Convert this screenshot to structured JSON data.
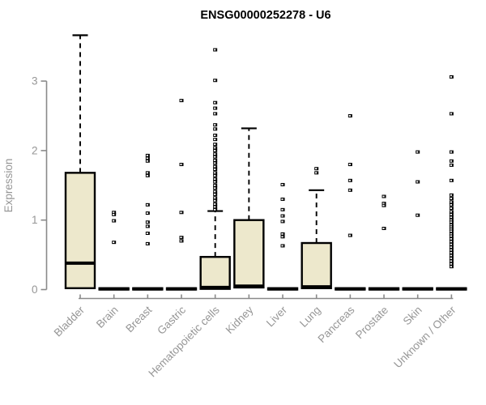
{
  "chart_data": {
    "type": "box",
    "title": "ENSG00000252278 - U6",
    "ylabel": "Expression",
    "xlabel": "",
    "ylim": [
      0,
      3.7
    ],
    "yticks": [
      0,
      1,
      2,
      3
    ],
    "grid": false,
    "legend": "none",
    "colors": {
      "box_fill": "#EDE8CC",
      "box_border": "#000000",
      "median": "#000000",
      "whisker": "#000000",
      "outlier": "#000000",
      "axis": "#8A8A8A",
      "tick_text": "#969696",
      "title_text": "#000000",
      "background": "#FFFFFF"
    },
    "categories": [
      "Bladder",
      "Brain",
      "Breast",
      "Gastric",
      "Hematopoietic cells",
      "Kidney",
      "Liver",
      "Lung",
      "Pancreas",
      "Prostate",
      "Skin",
      "Unknown / Other"
    ],
    "boxes": [
      {
        "category": "Bladder",
        "q1": 0.02,
        "median": 0.38,
        "q3": 1.68,
        "whisker_low": 0.02,
        "whisker_high": 3.66,
        "outliers": []
      },
      {
        "category": "Brain",
        "q1": 0,
        "median": 0.01,
        "q3": 0.02,
        "whisker_low": 0,
        "whisker_high": 0.02,
        "outliers": [
          1.11,
          1.08,
          0.99,
          0.68
        ]
      },
      {
        "category": "Breast",
        "q1": 0,
        "median": 0.01,
        "q3": 0.02,
        "whisker_low": 0,
        "whisker_high": 0.02,
        "outliers": [
          1.93,
          1.89,
          1.85,
          1.68,
          1.64,
          1.22,
          1.1,
          0.97,
          0.91,
          0.81,
          0.66
        ]
      },
      {
        "category": "Gastric",
        "q1": 0,
        "median": 0.01,
        "q3": 0.02,
        "whisker_low": 0,
        "whisker_high": 0.02,
        "outliers": [
          2.72,
          1.8,
          1.11,
          0.75,
          0.7
        ]
      },
      {
        "category": "Hematopoietic cells",
        "q1": 0.01,
        "median": 0.03,
        "q3": 0.47,
        "whisker_low": 0.01,
        "whisker_high": 1.13,
        "outliers": [
          3.45,
          3.01,
          2.69,
          2.61,
          2.53,
          2.37,
          2.31,
          2.22,
          2.16,
          2.09,
          2.04,
          2.0,
          1.95,
          1.91,
          1.86,
          1.82,
          1.77,
          1.73,
          1.68,
          1.64,
          1.59,
          1.55,
          1.5,
          1.46,
          1.41,
          1.37,
          1.32,
          1.28,
          1.23,
          1.19,
          1.15
        ]
      },
      {
        "category": "Kidney",
        "q1": 0.03,
        "median": 0.05,
        "q3": 1.0,
        "whisker_low": 0.03,
        "whisker_high": 2.32,
        "outliers": []
      },
      {
        "category": "Liver",
        "q1": 0,
        "median": 0.01,
        "q3": 0.02,
        "whisker_low": 0,
        "whisker_high": 0.02,
        "outliers": [
          1.51,
          1.3,
          1.15,
          1.06,
          0.98,
          0.8,
          0.76,
          0.63
        ]
      },
      {
        "category": "Lung",
        "q1": 0.02,
        "median": 0.04,
        "q3": 0.67,
        "whisker_low": 0.02,
        "whisker_high": 1.43,
        "outliers": [
          1.74,
          1.68
        ]
      },
      {
        "category": "Pancreas",
        "q1": 0,
        "median": 0.01,
        "q3": 0.02,
        "whisker_low": 0,
        "whisker_high": 0.02,
        "outliers": [
          2.5,
          1.8,
          1.57,
          1.43,
          0.78
        ]
      },
      {
        "category": "Prostate",
        "q1": 0,
        "median": 0.01,
        "q3": 0.02,
        "whisker_low": 0,
        "whisker_high": 0.02,
        "outliers": [
          1.34,
          1.24,
          1.21,
          0.88
        ]
      },
      {
        "category": "Skin",
        "q1": 0,
        "median": 0.01,
        "q3": 0.02,
        "whisker_low": 0,
        "whisker_high": 0.02,
        "outliers": [
          1.98,
          1.55,
          1.07
        ]
      },
      {
        "category": "Unknown / Other",
        "q1": 0,
        "median": 0.01,
        "q3": 0.02,
        "whisker_low": 0,
        "whisker_high": 0.02,
        "outliers": [
          3.06,
          2.53,
          1.98,
          1.85,
          1.79,
          1.57,
          1.36,
          1.31,
          1.26,
          1.22,
          1.17,
          1.12,
          1.08,
          1.04,
          1.0,
          0.97,
          0.93,
          0.9,
          0.87,
          0.84,
          0.8,
          0.77,
          0.73,
          0.69,
          0.65,
          0.61,
          0.57,
          0.53,
          0.49,
          0.45,
          0.41,
          0.37,
          0.33
        ]
      }
    ]
  }
}
